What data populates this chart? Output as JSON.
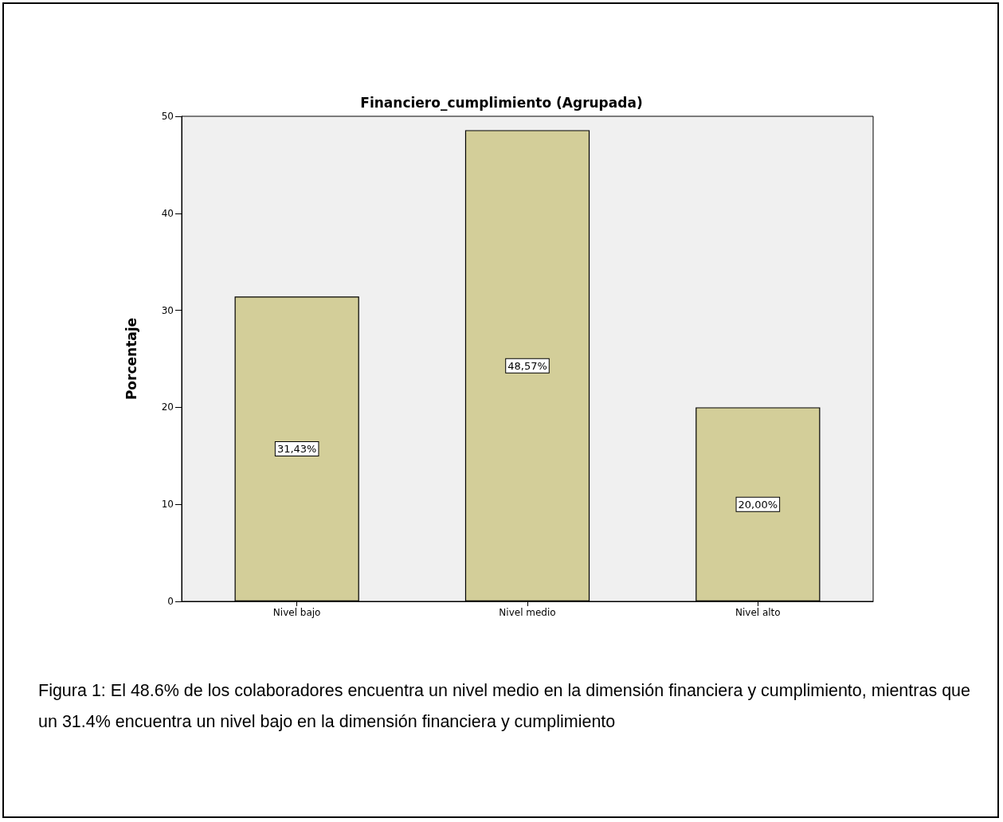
{
  "chart_data": {
    "type": "bar",
    "title": "Financiero_cumplimiento (Agrupada)",
    "ylabel": "Porcentaje",
    "categories": [
      "Nivel bajo",
      "Nivel medio",
      "Nivel alto"
    ],
    "values": [
      31.43,
      48.57,
      20.0
    ],
    "value_labels": [
      "31,43%",
      "48,57%",
      "20,00%"
    ],
    "color": "#d3ce99",
    "ylim": [
      0,
      50
    ],
    "yticks": [
      0,
      10,
      20,
      30,
      40,
      50
    ],
    "annotations": [
      "Figura 1: El 48.6% de los colaboradores encuentra un nivel medio en la dimensión financiera y cumplimiento, mientras que un 31.4% encuentra un nivel bajo en la dimensión financiera y cumplimiento"
    ]
  }
}
